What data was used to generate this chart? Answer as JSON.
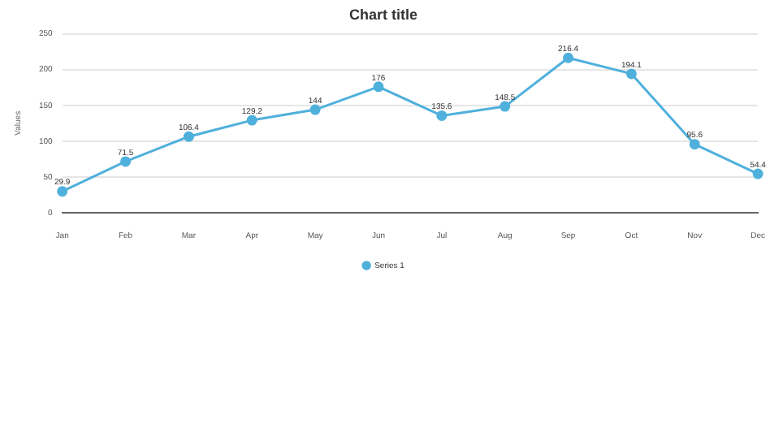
{
  "chart_data": {
    "type": "line",
    "title": "Chart title",
    "ylabel": "Values",
    "categories": [
      "Jan",
      "Feb",
      "Mar",
      "Apr",
      "May",
      "Jun",
      "Jul",
      "Aug",
      "Sep",
      "Oct",
      "Nov",
      "Dec"
    ],
    "series": [
      {
        "name": "Series 1",
        "color": "#4fb0dc",
        "values": [
          29.9,
          71.5,
          106.4,
          129.2,
          144,
          176,
          135.6,
          148.5,
          216.4,
          194.1,
          95.6,
          54.4
        ]
      }
    ],
    "ylim": [
      0,
      250
    ],
    "yticks": [
      0,
      50,
      100,
      150,
      200,
      250
    ],
    "grid": "y",
    "legend": "bottom",
    "marker": "circle",
    "data_labels": true
  }
}
